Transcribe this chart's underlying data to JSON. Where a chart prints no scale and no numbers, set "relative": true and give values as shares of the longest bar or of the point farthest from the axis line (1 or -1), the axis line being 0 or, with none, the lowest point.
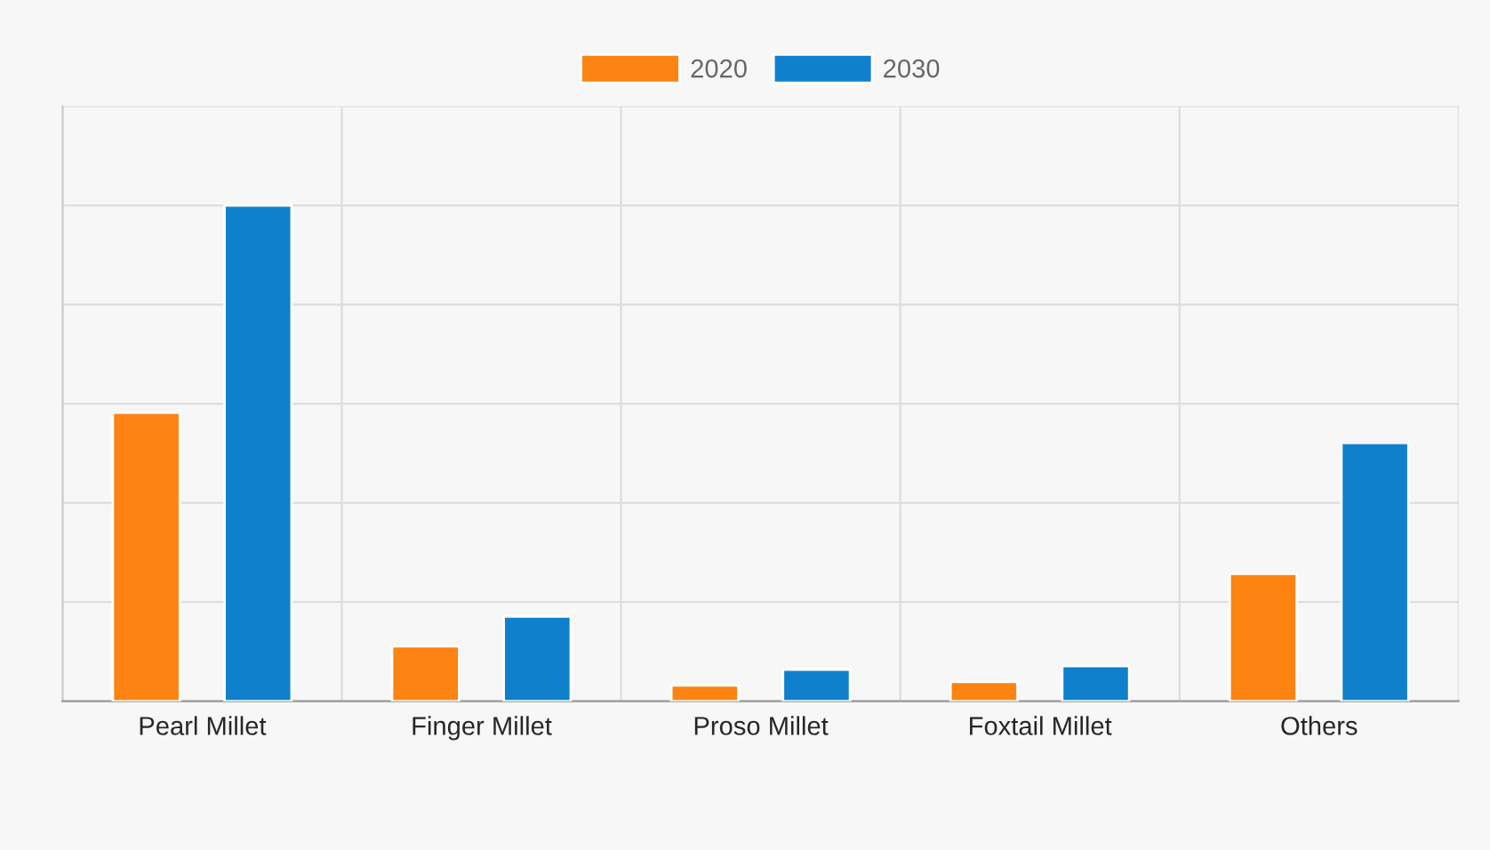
{
  "chart_data": {
    "type": "bar",
    "relative": true,
    "grid": true,
    "legend": "top",
    "categories": [
      "Pearl Millet",
      "Finger Millet",
      "Proso Millet",
      "Foxtail Millet",
      "Others"
    ],
    "series": [
      {
        "name": "2020",
        "color": "#fd8312",
        "values": [
          0.582,
          0.111,
          0.032,
          0.039,
          0.257
        ]
      },
      {
        "name": "2030",
        "color": "#0f80cc",
        "values": [
          1.0,
          0.171,
          0.064,
          0.071,
          0.521
        ]
      }
    ]
  }
}
